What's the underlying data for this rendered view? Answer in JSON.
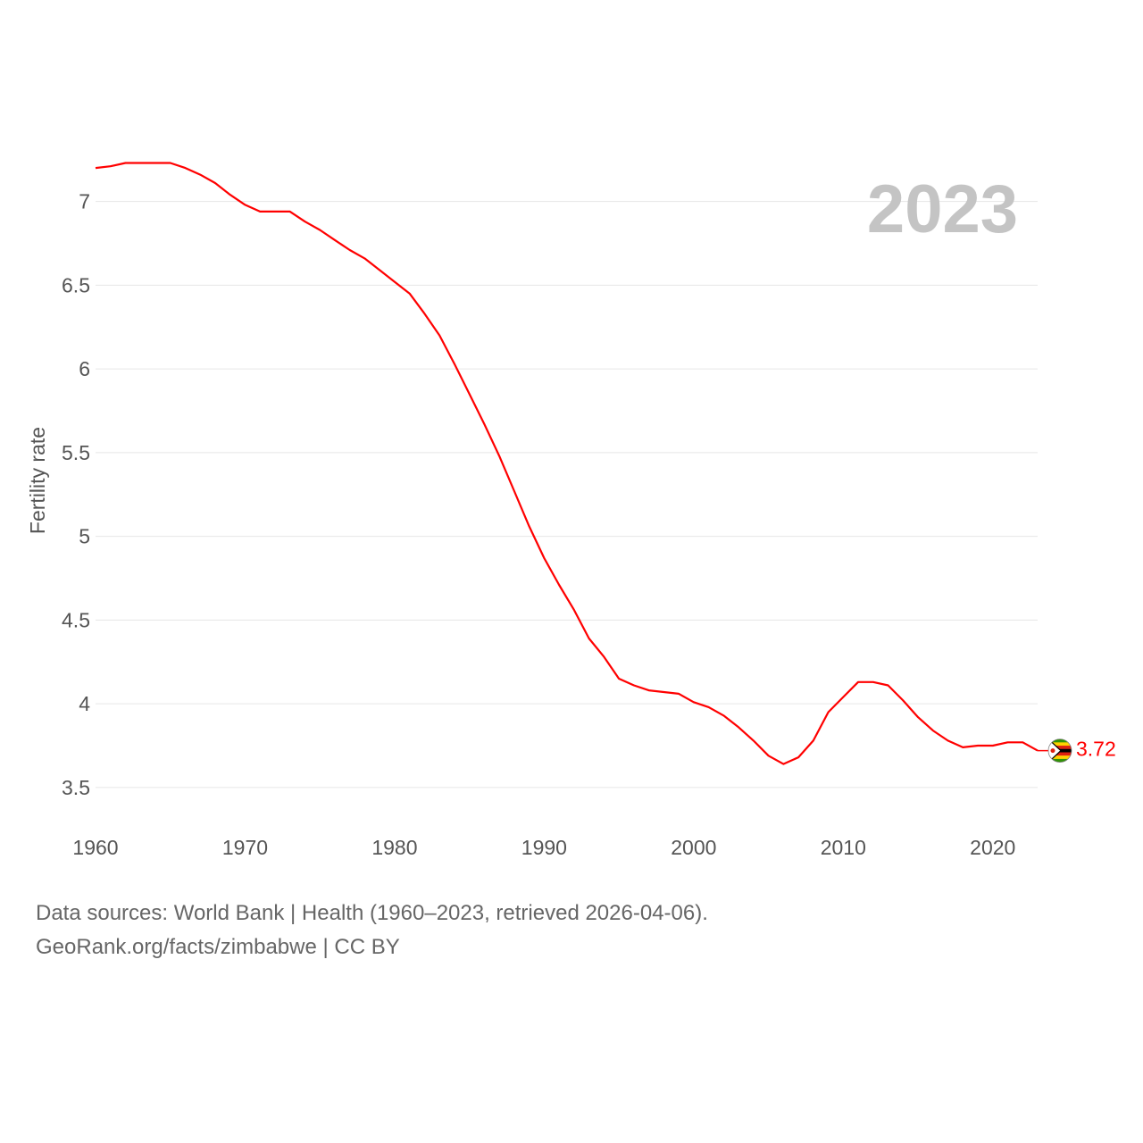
{
  "chart_data": {
    "type": "line",
    "ylabel": "Fertility rate",
    "xlim": [
      1960,
      2023
    ],
    "ylim": [
      3.35,
      7.35
    ],
    "x_ticks": [
      1960,
      1970,
      1980,
      1990,
      2000,
      2010,
      2020
    ],
    "y_ticks": [
      3.5,
      4,
      4.5,
      5,
      5.5,
      6,
      6.5,
      7
    ],
    "y_tick_labels": [
      "3.5",
      "4",
      "4.5",
      "5",
      "5.5",
      "6",
      "6.5",
      "7"
    ],
    "year_label": "2023",
    "end_value_label": "3.72",
    "end_marker": "zimbabwe-flag-icon",
    "line_color": "#ff0000",
    "series": [
      {
        "name": "Zimbabwe",
        "x": [
          1960,
          1961,
          1962,
          1963,
          1964,
          1965,
          1966,
          1967,
          1968,
          1969,
          1970,
          1971,
          1972,
          1973,
          1974,
          1975,
          1976,
          1977,
          1978,
          1979,
          1980,
          1981,
          1982,
          1983,
          1984,
          1985,
          1986,
          1987,
          1988,
          1989,
          1990,
          1991,
          1992,
          1993,
          1994,
          1995,
          1996,
          1997,
          1998,
          1999,
          2000,
          2001,
          2002,
          2003,
          2004,
          2005,
          2006,
          2007,
          2008,
          2009,
          2010,
          2011,
          2012,
          2013,
          2014,
          2015,
          2016,
          2017,
          2018,
          2019,
          2020,
          2021,
          2022,
          2023
        ],
        "values": [
          7.2,
          7.21,
          7.23,
          7.23,
          7.23,
          7.23,
          7.2,
          7.16,
          7.11,
          7.04,
          6.98,
          6.94,
          6.94,
          6.94,
          6.88,
          6.83,
          6.77,
          6.71,
          6.66,
          6.59,
          6.52,
          6.45,
          6.33,
          6.2,
          6.03,
          5.85,
          5.67,
          5.48,
          5.27,
          5.06,
          4.87,
          4.71,
          4.56,
          4.39,
          4.28,
          4.15,
          4.11,
          4.08,
          4.07,
          4.06,
          4.01,
          3.98,
          3.93,
          3.86,
          3.78,
          3.69,
          3.64,
          3.68,
          3.78,
          3.95,
          4.04,
          4.13,
          4.13,
          4.11,
          4.02,
          3.92,
          3.84,
          3.78,
          3.74,
          3.75,
          3.75,
          3.77,
          3.77,
          3.72
        ]
      }
    ]
  },
  "footer": {
    "line1": "Data sources: World Bank | Health (1960–2023, retrieved 2026-04-06).",
    "line2": "GeoRank.org/facts/zimbabwe | CC BY"
  }
}
